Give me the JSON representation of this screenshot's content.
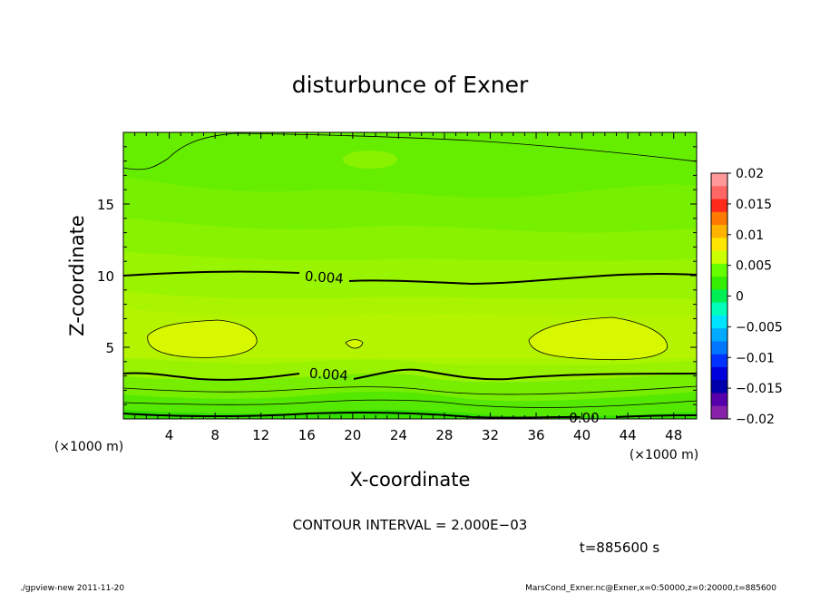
{
  "chart_data": {
    "type": "heatmap",
    "title": "disturbunce of Exner",
    "xlabel": "X-coordinate",
    "ylabel": "Z-coordinate",
    "x_unit": "(×1000 m)",
    "y_unit": "(×1000 m)",
    "xlim": [
      0,
      50
    ],
    "ylim": [
      0,
      20
    ],
    "x_ticks": [
      "4",
      "8",
      "12",
      "16",
      "20",
      "24",
      "28",
      "32",
      "36",
      "40",
      "44",
      "48"
    ],
    "y_ticks": [
      "5",
      "10",
      "15"
    ],
    "colorbar": {
      "min": -0.02,
      "max": 0.02,
      "labels": [
        "0.02",
        "0.015",
        "0.01",
        "0.005",
        "0",
        "−0.005",
        "−0.01",
        "−0.015",
        "−0.02"
      ],
      "colors": [
        "#ff9999",
        "#ff6666",
        "#ff2a1a",
        "#ff7a00",
        "#ffb300",
        "#ffe600",
        "#ccff00",
        "#66ff00",
        "#33ee00",
        "#00ee55",
        "#00ffbb",
        "#00e5ff",
        "#00aaff",
        "#0077ff",
        "#0033ff",
        "#0000dd",
        "#0000aa",
        "#5500aa",
        "#8822aa"
      ]
    },
    "contour_labels": [
      "0.004",
      "0.004",
      "0.00"
    ],
    "series": [
      {
        "level": 0.004,
        "z_at_x": [
          {
            "x": 0,
            "z": 10.0
          },
          {
            "x": 14,
            "z": 10.3
          },
          {
            "x": 31,
            "z": 9.5
          },
          {
            "x": 50,
            "z": 10.1
          }
        ]
      },
      {
        "level": 0.004,
        "z_at_x": [
          {
            "x": 0,
            "z": 3.2
          },
          {
            "x": 8,
            "z": 2.7
          },
          {
            "x": 25,
            "z": 3.5
          },
          {
            "x": 36,
            "z": 2.7
          },
          {
            "x": 50,
            "z": 3.2
          }
        ]
      },
      {
        "level": 0.006,
        "regions": [
          {
            "x": [
              2,
              11
            ],
            "z": [
              4.3,
              7.0
            ]
          },
          {
            "x": [
              36,
              47
            ],
            "z": [
              4.3,
              7.1
            ]
          },
          {
            "x": [
              19.5,
              21.5
            ],
            "z": [
              4.7,
              5.5
            ]
          }
        ]
      },
      {
        "level": 0.002,
        "z_at_x": [
          {
            "x": 0,
            "z": 17.5
          },
          {
            "x": 6,
            "z": 19.5
          },
          {
            "x": 50,
            "z": 18.0
          }
        ]
      },
      {
        "level": 0.0,
        "z_at_x": [
          {
            "x": 0,
            "z": 0.4
          },
          {
            "x": 36,
            "z": 0.3
          },
          {
            "x": 50,
            "z": 0.3
          }
        ]
      }
    ],
    "contour_interval_text": "CONTOUR INTERVAL = 2.000E−03",
    "time_text": "t=885600 s"
  },
  "footer": {
    "left": "./gpview-new   2011-11-20",
    "right": "MarsCond_Exner.nc@Exner,x=0:50000,z=0:20000,t=885600"
  }
}
